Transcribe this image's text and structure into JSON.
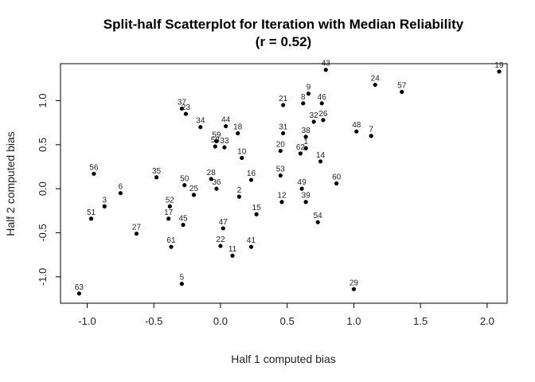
{
  "chart_data": {
    "type": "scatter",
    "title": "Split-half Scatterplot for Iteration with Median Reliability",
    "subtitle": "(r = 0.52)",
    "xlabel": "Half 1 computed bias",
    "ylabel": "Half 2 computed bias",
    "xlim": [
      -1.2,
      2.15
    ],
    "ylim": [
      -1.3,
      1.42
    ],
    "xticks": [
      -1.0,
      -0.5,
      0.0,
      0.5,
      1.0,
      1.5,
      2.0
    ],
    "xtick_labels": [
      "-1.0",
      "-0.5",
      "0.0",
      "0.5",
      "1.0",
      "1.5",
      "2.0"
    ],
    "yticks": [
      -1.0,
      -0.5,
      0.0,
      0.5,
      1.0
    ],
    "ytick_labels": [
      "-1.0",
      "-0.5",
      "0.0",
      "0.5",
      "1.0"
    ],
    "grid": false,
    "points": [
      {
        "label": "43",
        "x": 0.79,
        "y": 1.35
      },
      {
        "label": "19",
        "x": 2.09,
        "y": 1.33
      },
      {
        "label": "24",
        "x": 1.16,
        "y": 1.18
      },
      {
        "label": "57",
        "x": 1.36,
        "y": 1.1
      },
      {
        "label": "9",
        "x": 0.66,
        "y": 1.08
      },
      {
        "label": "8",
        "x": 0.62,
        "y": 0.97
      },
      {
        "label": "46",
        "x": 0.76,
        "y": 0.97
      },
      {
        "label": "21",
        "x": 0.47,
        "y": 0.95
      },
      {
        "label": "37",
        "x": -0.29,
        "y": 0.91
      },
      {
        "label": "23",
        "x": -0.26,
        "y": 0.85
      },
      {
        "label": "34",
        "x": -0.15,
        "y": 0.7
      },
      {
        "label": "44",
        "x": 0.04,
        "y": 0.71
      },
      {
        "label": "18",
        "x": 0.13,
        "y": 0.63
      },
      {
        "label": "59",
        "x": -0.03,
        "y": 0.54
      },
      {
        "label": "58",
        "x": -0.04,
        "y": 0.48
      },
      {
        "label": "33",
        "x": 0.03,
        "y": 0.47
      },
      {
        "label": "32",
        "x": 0.7,
        "y": 0.76
      },
      {
        "label": "26",
        "x": 0.77,
        "y": 0.78
      },
      {
        "label": "48",
        "x": 1.02,
        "y": 0.65
      },
      {
        "label": "7",
        "x": 1.13,
        "y": 0.6
      },
      {
        "label": "31",
        "x": 0.47,
        "y": 0.63
      },
      {
        "label": "38",
        "x": 0.64,
        "y": 0.59
      },
      {
        "label": "20",
        "x": 0.45,
        "y": 0.43
      },
      {
        "label": "1",
        "x": 0.64,
        "y": 0.46
      },
      {
        "label": "62",
        "x": 0.6,
        "y": 0.4
      },
      {
        "label": "10",
        "x": 0.16,
        "y": 0.35
      },
      {
        "label": "14",
        "x": 0.75,
        "y": 0.31
      },
      {
        "label": "56",
        "x": -0.95,
        "y": 0.17
      },
      {
        "label": "35",
        "x": -0.48,
        "y": 0.13
      },
      {
        "label": "28",
        "x": -0.07,
        "y": 0.11
      },
      {
        "label": "53",
        "x": 0.45,
        "y": 0.15
      },
      {
        "label": "16",
        "x": 0.23,
        "y": 0.1
      },
      {
        "label": "60",
        "x": 0.87,
        "y": 0.06
      },
      {
        "label": "50",
        "x": -0.27,
        "y": 0.04
      },
      {
        "label": "36",
        "x": -0.03,
        "y": 0.0
      },
      {
        "label": "49",
        "x": 0.61,
        "y": 0.0
      },
      {
        "label": "6",
        "x": -0.75,
        "y": -0.05
      },
      {
        "label": "25",
        "x": -0.2,
        "y": -0.07
      },
      {
        "label": "2",
        "x": 0.14,
        "y": -0.09
      },
      {
        "label": "12",
        "x": 0.46,
        "y": -0.15
      },
      {
        "label": "39",
        "x": 0.64,
        "y": -0.15
      },
      {
        "label": "3",
        "x": -0.87,
        "y": -0.2
      },
      {
        "label": "52",
        "x": -0.38,
        "y": -0.2
      },
      {
        "label": "15",
        "x": 0.27,
        "y": -0.29
      },
      {
        "label": "51",
        "x": -0.97,
        "y": -0.34
      },
      {
        "label": "17",
        "x": -0.39,
        "y": -0.34
      },
      {
        "label": "54",
        "x": 0.73,
        "y": -0.38
      },
      {
        "label": "45",
        "x": -0.28,
        "y": -0.41
      },
      {
        "label": "47",
        "x": 0.02,
        "y": -0.45
      },
      {
        "label": "27",
        "x": -0.63,
        "y": -0.51
      },
      {
        "label": "61",
        "x": -0.37,
        "y": -0.66
      },
      {
        "label": "22",
        "x": 0.0,
        "y": -0.65
      },
      {
        "label": "41",
        "x": 0.23,
        "y": -0.66
      },
      {
        "label": "11",
        "x": 0.09,
        "y": -0.76
      },
      {
        "label": "5",
        "x": -0.29,
        "y": -1.08
      },
      {
        "label": "29",
        "x": 1.0,
        "y": -1.14
      },
      {
        "label": "63",
        "x": -1.06,
        "y": -1.19
      }
    ]
  }
}
